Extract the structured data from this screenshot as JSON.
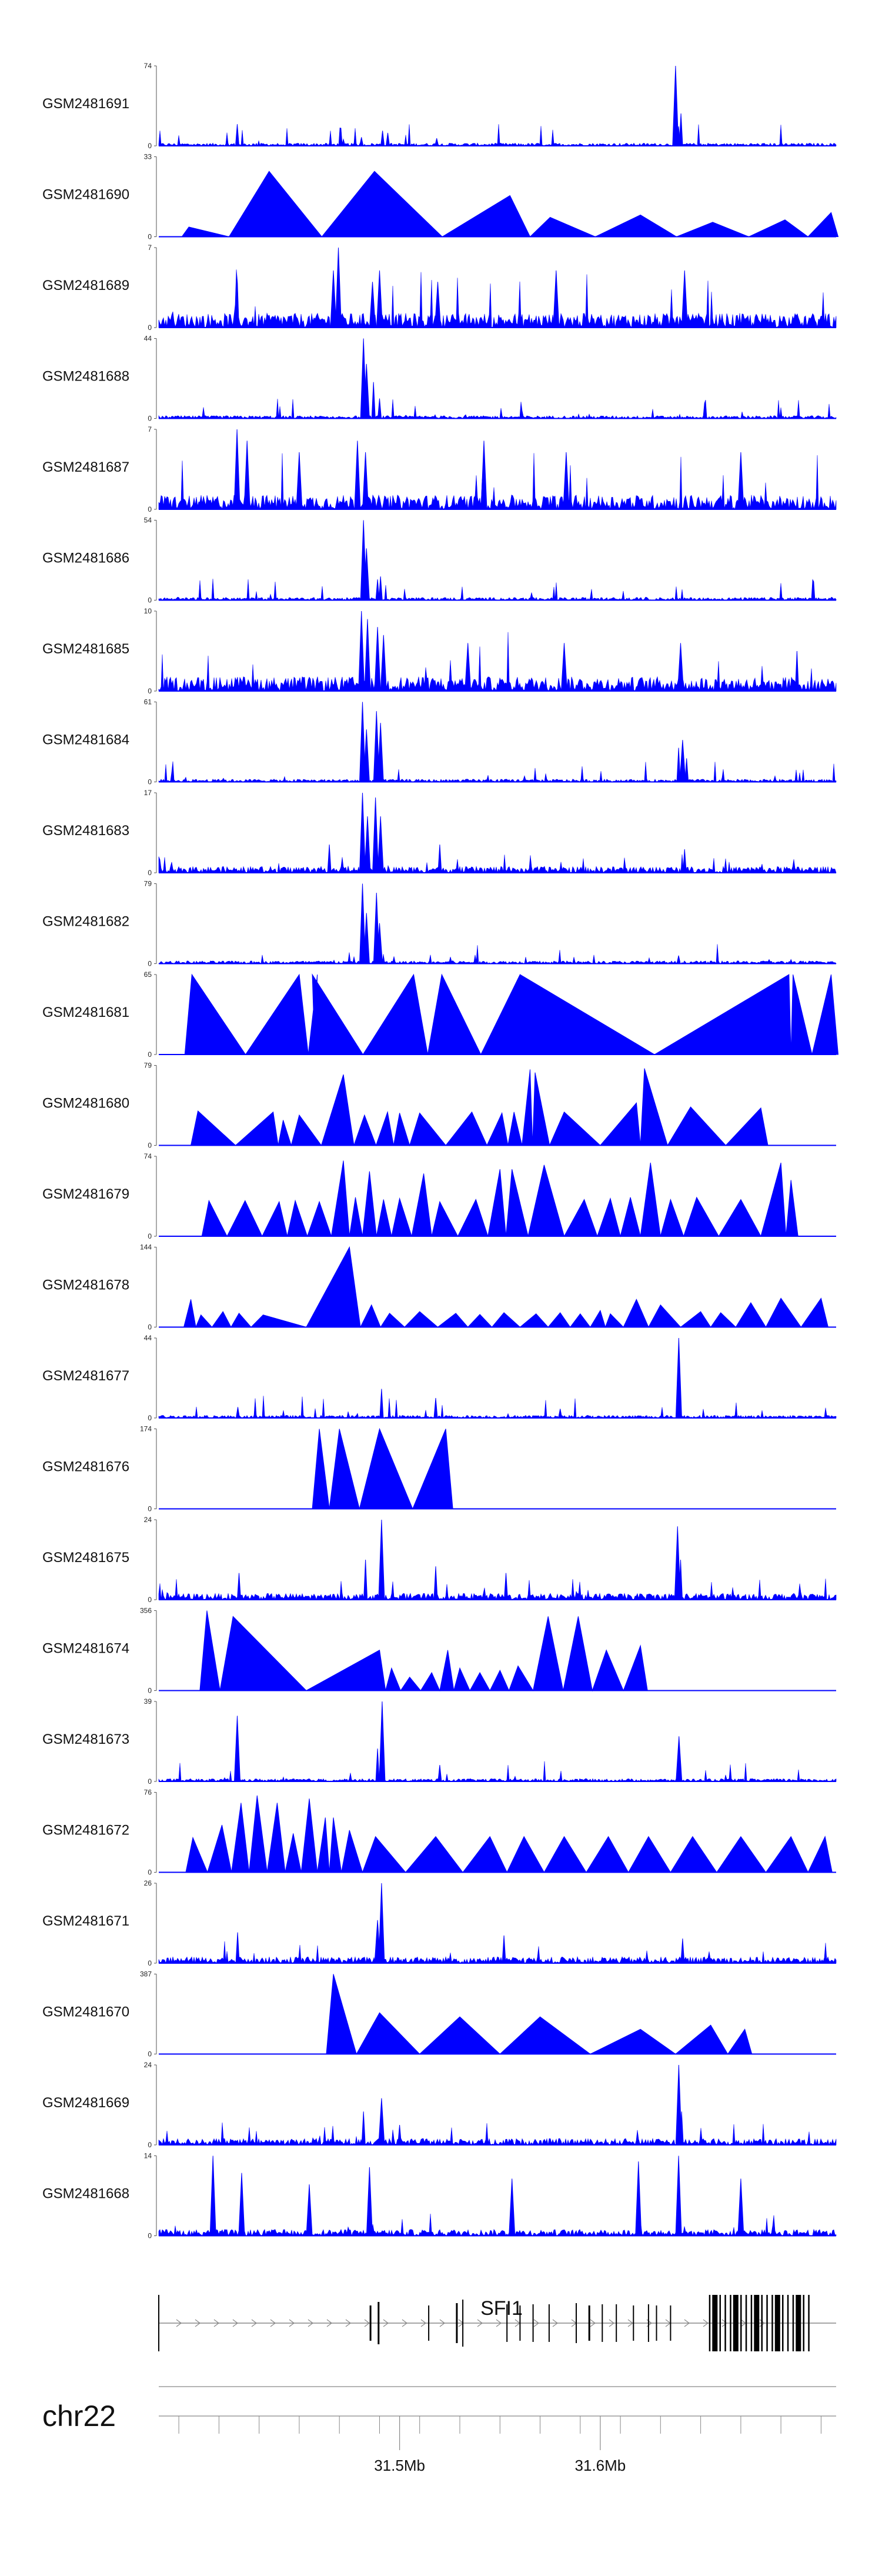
{
  "chart_data": {
    "type": "area",
    "color": "#0000ff",
    "tracks": [
      {
        "name": "GSM2481691",
        "ymax": 74,
        "mode": "spiky",
        "peaks": [
          [
            31.4191,
            20
          ],
          [
            31.4915,
            14
          ],
          [
            31.4941,
            12
          ],
          [
            31.5185,
            7
          ],
          [
            31.6375,
            74
          ],
          [
            31.6402,
            30
          ],
          [
            31.639,
            18
          ],
          [
            31.472,
            6
          ],
          [
            31.481,
            8
          ]
        ]
      },
      {
        "name": "GSM2481690",
        "ymax": 33,
        "mode": "triangles",
        "tri": [
          [
            31.395,
            4
          ],
          [
            31.435,
            27
          ],
          [
            31.4875,
            27
          ],
          [
            31.555,
            17
          ],
          [
            31.575,
            8
          ],
          [
            31.62,
            9
          ],
          [
            31.656,
            6
          ],
          [
            31.692,
            7
          ],
          [
            31.715,
            10
          ]
        ]
      },
      {
        "name": "GSM2481689",
        "ymax": 7,
        "mode": "spiky",
        "peaks": [
          [
            31.4695,
            7
          ],
          [
            31.467,
            5
          ],
          [
            31.4865,
            4
          ],
          [
            31.49,
            5
          ],
          [
            31.519,
            4
          ],
          [
            31.578,
            5
          ],
          [
            31.642,
            5
          ]
        ]
      },
      {
        "name": "GSM2481688",
        "ymax": 44,
        "mode": "spiky",
        "peaks": [
          [
            31.482,
            44
          ],
          [
            31.4835,
            30
          ],
          [
            31.487,
            20
          ],
          [
            31.49,
            11
          ]
        ]
      },
      {
        "name": "GSM2481687",
        "ymax": 7,
        "mode": "spiky",
        "peaks": [
          [
            31.419,
            7
          ],
          [
            31.424,
            6
          ],
          [
            31.45,
            5
          ],
          [
            31.479,
            6
          ],
          [
            31.483,
            5
          ],
          [
            31.542,
            6
          ],
          [
            31.583,
            5
          ],
          [
            31.67,
            5
          ]
        ]
      },
      {
        "name": "GSM2481686",
        "ymax": 54,
        "mode": "spiky",
        "peaks": [
          [
            31.482,
            54
          ],
          [
            31.4835,
            35
          ],
          [
            31.489,
            14
          ],
          [
            31.4905,
            16
          ]
        ]
      },
      {
        "name": "GSM2481685",
        "ymax": 10,
        "mode": "spiky",
        "peaks": [
          [
            31.481,
            10
          ],
          [
            31.484,
            9
          ],
          [
            31.489,
            8
          ],
          [
            31.492,
            7
          ],
          [
            31.534,
            6
          ],
          [
            31.582,
            6
          ],
          [
            31.64,
            6
          ],
          [
            31.698,
            5
          ]
        ]
      },
      {
        "name": "GSM2481684",
        "ymax": 61,
        "mode": "spiky",
        "peaks": [
          [
            31.4815,
            61
          ],
          [
            31.4835,
            40
          ],
          [
            31.4885,
            54
          ],
          [
            31.4905,
            45
          ],
          [
            31.639,
            26
          ],
          [
            31.641,
            32
          ],
          [
            31.643,
            18
          ]
        ]
      },
      {
        "name": "GSM2481683",
        "ymax": 17,
        "mode": "spiky",
        "peaks": [
          [
            31.4815,
            17
          ],
          [
            31.484,
            12
          ],
          [
            31.488,
            16
          ],
          [
            31.4905,
            12
          ],
          [
            31.465,
            6
          ],
          [
            31.52,
            6
          ],
          [
            31.642,
            5
          ]
        ]
      },
      {
        "name": "GSM2481682",
        "ymax": 79,
        "mode": "spiky",
        "peaks": [
          [
            31.4815,
            79
          ],
          [
            31.4835,
            50
          ],
          [
            31.4885,
            70
          ],
          [
            31.49,
            40
          ],
          [
            31.639,
            8
          ],
          [
            31.695,
            4
          ]
        ]
      },
      {
        "name": "GSM2481681",
        "ymax": 65,
        "mode": "triangles",
        "tri": [
          [
            31.3965,
            65
          ],
          [
            31.45,
            65
          ],
          [
            31.459,
            65
          ],
          [
            31.4565,
            65
          ],
          [
            31.507,
            65
          ],
          [
            31.521,
            65
          ],
          [
            31.56,
            65
          ],
          [
            31.694,
            65
          ],
          [
            31.696,
            65
          ],
          [
            31.715,
            65
          ]
        ]
      },
      {
        "name": "GSM2481680",
        "ymax": 79,
        "mode": "triangles",
        "tri": [
          [
            31.3995,
            34
          ],
          [
            31.437,
            33
          ],
          [
            31.442,
            25
          ],
          [
            31.45,
            30
          ],
          [
            31.472,
            70
          ],
          [
            31.4825,
            30
          ],
          [
            31.494,
            33
          ],
          [
            31.5,
            32
          ],
          [
            31.51,
            32
          ],
          [
            31.536,
            33
          ],
          [
            31.551,
            32
          ],
          [
            31.557,
            33
          ],
          [
            31.565,
            75
          ],
          [
            31.5675,
            72
          ],
          [
            31.582,
            33
          ],
          [
            31.618,
            42
          ],
          [
            31.622,
            76
          ],
          [
            31.645,
            38
          ],
          [
            31.68,
            37
          ]
        ]
      },
      {
        "name": "GSM2481679",
        "ymax": 74,
        "mode": "triangles",
        "tri": [
          [
            31.405,
            33
          ],
          [
            31.423,
            33
          ],
          [
            31.44,
            32
          ],
          [
            31.448,
            33
          ],
          [
            31.46,
            32
          ],
          [
            31.472,
            70
          ],
          [
            31.478,
            36
          ],
          [
            31.485,
            60
          ],
          [
            31.492,
            34
          ],
          [
            31.5,
            35
          ],
          [
            31.512,
            58
          ],
          [
            31.52,
            32
          ],
          [
            31.538,
            34
          ],
          [
            31.55,
            62
          ],
          [
            31.556,
            62
          ],
          [
            31.572,
            66
          ],
          [
            31.592,
            34
          ],
          [
            31.605,
            35
          ],
          [
            31.615,
            36
          ],
          [
            31.625,
            68
          ],
          [
            31.635,
            34
          ],
          [
            31.648,
            36
          ],
          [
            31.67,
            34
          ],
          [
            31.69,
            68
          ],
          [
            31.695,
            52
          ]
        ]
      },
      {
        "name": "GSM2481678",
        "ymax": 144,
        "mode": "triangles",
        "tri": [
          [
            31.396,
            50
          ],
          [
            31.401,
            22
          ],
          [
            31.412,
            28
          ],
          [
            31.42,
            25
          ],
          [
            31.432,
            22
          ],
          [
            31.475,
            144
          ],
          [
            31.486,
            40
          ],
          [
            31.495,
            25
          ],
          [
            31.51,
            28
          ],
          [
            31.528,
            25
          ],
          [
            31.54,
            23
          ],
          [
            31.552,
            26
          ],
          [
            31.568,
            24
          ],
          [
            31.58,
            26
          ],
          [
            31.59,
            24
          ],
          [
            31.6,
            30
          ],
          [
            31.605,
            24
          ],
          [
            31.618,
            50
          ],
          [
            31.63,
            40
          ],
          [
            31.65,
            28
          ],
          [
            31.66,
            26
          ],
          [
            31.675,
            44
          ],
          [
            31.69,
            52
          ],
          [
            31.71,
            52
          ]
        ]
      },
      {
        "name": "GSM2481677",
        "ymax": 44,
        "mode": "spiky",
        "peaks": [
          [
            31.491,
            16
          ],
          [
            31.518,
            11
          ],
          [
            31.4194,
            6
          ],
          [
            31.6391,
            44
          ],
          [
            31.58,
            5
          ]
        ]
      },
      {
        "name": "GSM2481676",
        "ymax": 174,
        "mode": "triangles",
        "tri": [
          [
            31.46,
            174
          ],
          [
            31.47,
            174
          ],
          [
            31.49,
            174
          ],
          [
            31.523,
            174
          ]
        ]
      },
      {
        "name": "GSM2481675",
        "ymax": 24,
        "mode": "spiky",
        "peaks": [
          [
            31.491,
            24
          ],
          [
            31.483,
            12
          ],
          [
            31.518,
            10
          ],
          [
            31.6385,
            22
          ],
          [
            31.64,
            12
          ],
          [
            31.42,
            8
          ],
          [
            31.553,
            8
          ]
        ]
      },
      {
        "name": "GSM2481674",
        "ymax": 356,
        "mode": "triangles",
        "tri": [
          [
            31.404,
            356
          ],
          [
            31.417,
            330
          ],
          [
            31.49,
            180
          ],
          [
            31.496,
            100
          ],
          [
            31.505,
            60
          ],
          [
            31.516,
            80
          ],
          [
            31.524,
            180
          ],
          [
            31.53,
            100
          ],
          [
            31.54,
            80
          ],
          [
            31.55,
            90
          ],
          [
            31.559,
            110
          ],
          [
            31.574,
            330
          ],
          [
            31.589,
            330
          ],
          [
            31.603,
            180
          ],
          [
            31.62,
            200
          ]
        ]
      },
      {
        "name": "GSM2481673",
        "ymax": 39,
        "mode": "spiky",
        "peaks": [
          [
            31.4191,
            32
          ],
          [
            31.4913,
            39
          ],
          [
            31.489,
            16
          ],
          [
            31.6392,
            22
          ],
          [
            31.52,
            8
          ]
        ]
      },
      {
        "name": "GSM2481672",
        "ymax": 76,
        "mode": "triangles",
        "tri": [
          [
            31.397,
            33
          ],
          [
            31.4115,
            45
          ],
          [
            31.421,
            66
          ],
          [
            31.429,
            73
          ],
          [
            31.439,
            66
          ],
          [
            31.447,
            37
          ],
          [
            31.455,
            70
          ],
          [
            31.463,
            52
          ],
          [
            31.467,
            52
          ],
          [
            31.475,
            40
          ],
          [
            31.488,
            34
          ],
          [
            31.518,
            34
          ],
          [
            31.545,
            34
          ],
          [
            31.562,
            34
          ],
          [
            31.582,
            34
          ],
          [
            31.604,
            34
          ],
          [
            31.624,
            34
          ],
          [
            31.646,
            34
          ],
          [
            31.67,
            34
          ],
          [
            31.695,
            34
          ],
          [
            31.712,
            34
          ]
        ]
      },
      {
        "name": "GSM2481671",
        "ymax": 26,
        "mode": "spiky",
        "peaks": [
          [
            31.491,
            26
          ],
          [
            31.489,
            14
          ],
          [
            31.4193,
            10
          ],
          [
            31.552,
            9
          ],
          [
            31.641,
            8
          ]
        ]
      },
      {
        "name": "GSM2481670",
        "ymax": 387,
        "mode": "triangles",
        "tri": [
          [
            31.467,
            387
          ],
          [
            31.49,
            200
          ],
          [
            31.53,
            180
          ],
          [
            31.57,
            180
          ],
          [
            31.62,
            120
          ],
          [
            31.655,
            140
          ],
          [
            31.672,
            120
          ]
        ]
      },
      {
        "name": "GSM2481669",
        "ymax": 24,
        "mode": "spiky",
        "peaks": [
          [
            31.491,
            14
          ],
          [
            31.482,
            10
          ],
          [
            31.6391,
            24
          ],
          [
            31.6405,
            10
          ],
          [
            31.5,
            6
          ]
        ]
      },
      {
        "name": "GSM2481668",
        "ymax": 14,
        "mode": "spiky",
        "peaks": [
          [
            31.407,
            14
          ],
          [
            31.4213,
            11
          ],
          [
            31.455,
            9
          ],
          [
            31.485,
            12
          ],
          [
            31.556,
            10
          ],
          [
            31.639,
            14
          ],
          [
            31.67,
            10
          ],
          [
            31.619,
            13
          ]
        ]
      }
    ],
    "gene": {
      "name": "SFI1",
      "strand": "+"
    },
    "chromosome": "chr22",
    "axis": {
      "ticks": [
        "31.5Mb",
        "31.6Mb"
      ],
      "tick_values": [
        31.5,
        31.6
      ],
      "xlim": [
        31.38,
        31.7175
      ]
    }
  }
}
